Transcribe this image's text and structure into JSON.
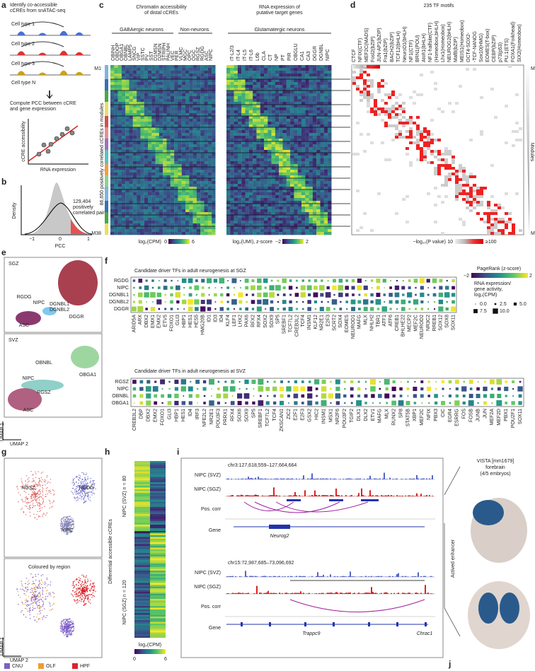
{
  "a": {
    "label": "a",
    "title": [
      "Identify co-accessible",
      "cCREs from snATAC-seq"
    ],
    "cell_types": [
      "Cell type 1",
      "Cell type 2",
      "Cell type 3",
      "Cell type N"
    ],
    "step": [
      "Compute PCC between cCRE",
      "and gene expression"
    ],
    "y_axis": "cCRE accessibility",
    "x_axis": "RNA expression"
  },
  "b": {
    "label": "b",
    "y_axis": "Density",
    "x_axis": "PCC",
    "x_ticks": [
      "−1",
      "0",
      "1"
    ],
    "annotation": [
      "129,404",
      "positively",
      "correlated pairs"
    ]
  },
  "c": {
    "label": "c",
    "title_left": [
      "Chromatin accessibility",
      "of distal cCREs"
    ],
    "title_right": [
      "RNA expression of",
      "putative target genes"
    ],
    "groups": [
      "GABAergic neurons",
      "Non-neurons",
      "Glutamatergic neurons"
    ],
    "columns_left": [
      "OBINH",
      "OBDOP",
      "OBGA1",
      "OBNBL",
      "LAMP5",
      "SNCG",
      "VIP",
      "SSTC",
      "PV",
      "SST",
      "D1MSN",
      "D2MSN",
      "STRIPH",
      "PALINH",
      "VEC",
      "PER",
      "VLMC",
      "MGC",
      "OPC",
      "OGC",
      "RGSZ",
      "RGDG",
      "ASC",
      "NIPC"
    ],
    "columns_right": [
      "IT-L2/3",
      "IT-L4",
      "IT-L5",
      "IT-L6",
      "L6b",
      "CLA",
      "CT",
      "NP",
      "PT",
      "PIR",
      "OBGLU",
      "CA1",
      "CA3",
      "DGGR",
      "DGNBL",
      "NIPC"
    ],
    "row_axis": "86,650 positively correlated cCREs in modules",
    "module_first": "M1",
    "module_last": "M38",
    "colorbar_left": {
      "title": "log₂(CPM)",
      "min": "0",
      "max": "6"
    },
    "colorbar_right": {
      "title": "log₂(UMI), z-score",
      "min": "−2",
      "max": "2"
    }
  },
  "d": {
    "label": "d",
    "title": "235 TF motifs",
    "motifs": [
      "CTCF",
      "NFIX(CTF)",
      "MEF2C(MADS)",
      "Fosl2(bZIP)",
      "JUN-AP1(bZIP)",
      "Fra1(bZIP)",
      "BACH2(bZIP)",
      "TCF12(bHLH)",
      "NeuroD1(bHLH)",
      "NF1(CTF)",
      "BRN1(POU)",
      "Atoh1(bHLH)",
      "NF1-halfsite(CTF)",
      "(Homeobox,bHLH)",
      "Lhx1(Homeobox)",
      "NEUROG2(bHLH)",
      "MafB(bZIP)",
      "MEIS1(Homeobox)",
      "OCT4-SOX2-",
      "-TCF-NANOG",
      "Sox10(HMG)",
      "EOMES(T-box)",
      "CEBP(bZIP)",
      "p73(p53)",
      "PU.1(ETS)",
      "FOXA1(Forkhead)",
      "SIX2(Homeobox)"
    ],
    "module_first": "M1",
    "module_last": "M38",
    "modules": "Modules",
    "colorbar": {
      "title": "−log₁₀(P value)",
      "min": "10",
      "max": "≥100"
    }
  },
  "e": {
    "label": "e",
    "sgz": {
      "title": "SGZ",
      "clusters": [
        "DGGR",
        "RGDG",
        "NIPC",
        "DGNBL1",
        "DGNBL2",
        "ASC"
      ]
    },
    "svz": {
      "title": "SVZ",
      "clusters": [
        "OBNBL",
        "OBGA1",
        "NIPC",
        "RGSZ",
        "ASC"
      ]
    },
    "x_axis": "UMAP 2",
    "y_axis": "UMAP 1"
  },
  "f": {
    "label": "f",
    "sgz": {
      "title": "Candidate driver TFs in adult neurogenesis at SGZ",
      "rows": [
        "RGDG",
        "NIPC",
        "DGNBL1",
        "DGNBL2",
        "DGGR"
      ],
      "genes": [
        "ARID5A",
        "ARX",
        "DBX2",
        "EMX1",
        "EMX2",
        "ETV5",
        "FOXO1",
        "GLI3",
        "HBP1",
        "HES1",
        "HES5",
        "HMG20B",
        "ID1",
        "ID3",
        "ID4",
        "KLF4",
        "LEF1",
        "LHX2",
        "PAX6",
        "RFX2",
        "RFX4",
        "SOX2",
        "SOX9",
        "SP5",
        "SREBF1",
        "TCF7L2",
        "CREB3L2",
        "TCF4",
        "INSM1",
        "KLF12",
        "NR2E1",
        "E2F3",
        "SCRT2",
        "SOX4",
        "EOMES",
        "NEUROD1",
        "MAFG",
        "MLX",
        "NHLH2",
        "TBR1",
        "ATF1",
        "ATF6",
        "CREB1",
        "BHLHE22",
        "MECP2",
        "MEF2C",
        "NEUROD2",
        "NR3C2",
        "RREB1",
        "SOX12",
        "SOX8",
        "SOX11"
      ]
    },
    "svz": {
      "title": "Candidate driver TFs in adult neurogenesis at SVZ",
      "rows": [
        "RGSZ",
        "NIPC",
        "OBNBL",
        "OBGA1"
      ],
      "genes": [
        "CREB3L2",
        "DBP",
        "DBX2",
        "EMX2",
        "FOXO1",
        "GLI3",
        "HBP1",
        "HES1",
        "ID4",
        "IRF3",
        "NFE2L2",
        "NR2E1",
        "POU3F3",
        "PRRX1",
        "RFX4",
        "SOX6",
        "SOX9",
        "SP5",
        "SREBF1",
        "TCF7L2",
        "TCF4",
        "ZKSCAN1",
        "ZIC2",
        "E2F1",
        "E2F3",
        "GSX2",
        "HIC2",
        "INSM1",
        "MSX1",
        "NR2F6",
        "POU3F2",
        "TGIF2",
        "DLX1",
        "DLX2",
        "ETV1",
        "MAFG",
        "MLX",
        "RUNX2",
        "SP8",
        "STAT5B",
        "XBP1",
        "MEF2C",
        "NFIX",
        "PBX3",
        "CIC",
        "EGR4",
        "ESRRG",
        "FOS",
        "FOSB",
        "JUNB",
        "JUN",
        "MEF2A",
        "MEF2D",
        "PBX1",
        "POU2F1",
        "SOX11"
      ]
    },
    "legend": {
      "color_title": "PageRank (z-score)",
      "color_min": "−2",
      "color_max": "2",
      "size_title": [
        "RNA expression/",
        "gene activity,",
        "log₂(CPM)"
      ],
      "sizes": [
        "0.0",
        "2.5",
        "5.0",
        "7.5",
        "10.0"
      ]
    }
  },
  "g": {
    "label": "g",
    "clusters": [
      "RGSZ",
      "RGDG",
      "NIPC"
    ],
    "subtitle": "Coloured by region",
    "x_axis": "UMAP 2",
    "y_axis": "UMAP 1",
    "regions": [
      {
        "name": "CNU",
        "color": "#7d5fc6"
      },
      {
        "name": "OLF",
        "color": "#f39a32"
      },
      {
        "name": "HPF",
        "color": "#d9252b"
      }
    ]
  },
  "h": {
    "label": "h",
    "y_axis": "Differential accessible cCREs",
    "groups": [
      "NIPC (SVZ) n = 80",
      "NIPC (SGZ) n = 120"
    ],
    "colorbar": {
      "title": "log₂(CPM)",
      "min": "0",
      "max": "6"
    }
  },
  "i": {
    "label": "i",
    "loci": [
      {
        "coords": "chr3:127,618,559–127,664,664",
        "tracks": [
          "NIPC (SVZ)",
          "NIPC (SGZ)",
          "Pos. corr",
          "Gene"
        ],
        "genes": [
          "Neurog2"
        ]
      },
      {
        "coords": "chr15:72,987,685–73,096,692",
        "tracks": [
          "NIPC (SVZ)",
          "NIPC (SGZ)",
          "Pos. corr",
          "Gene"
        ],
        "genes": [
          "Trappc9",
          "Chrac1"
        ]
      }
    ]
  },
  "j": {
    "label": "j",
    "title": [
      "VISTA [mm1679]",
      "forebrain",
      "(4/5 embryos)"
    ],
    "side": "Actived enhancer"
  }
}
